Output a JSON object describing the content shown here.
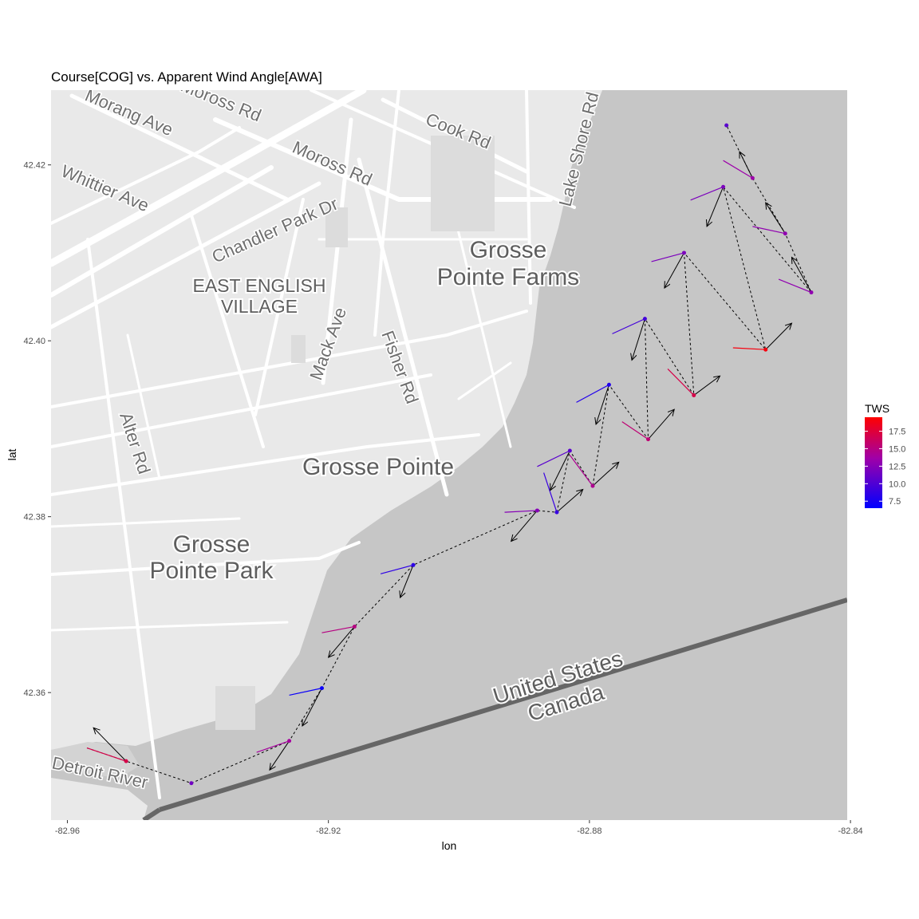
{
  "chart_data": {
    "type": "scatter",
    "title": "Course[COG] vs.  Apparent Wind Angle[AWA]",
    "xlabel": "lon",
    "ylabel": "lat",
    "xlim": [
      -82.9625,
      -82.8405
    ],
    "ylim": [
      42.3455,
      42.4285
    ],
    "x_ticks": [
      -82.96,
      -82.92,
      -82.88,
      -82.84
    ],
    "x_tick_labels": [
      "-82.96",
      "-82.92",
      "-82.88",
      "-82.84"
    ],
    "y_ticks": [
      42.36,
      42.38,
      42.4,
      42.42
    ],
    "y_tick_labels": [
      "42.36",
      "42.38",
      "42.40",
      "42.42"
    ],
    "legend": {
      "title": "TWS",
      "placement": "right",
      "min": 6.5,
      "max": 19.5,
      "breaks": [
        7.5,
        10.0,
        12.5,
        15.0,
        17.5
      ],
      "break_labels": [
        "7.5",
        "10.0",
        "12.5",
        "15.0",
        "17.5"
      ],
      "low_color": "#0000ff",
      "high_color": "#ff0000"
    },
    "track_style": "dashed",
    "grid": false,
    "points": [
      {
        "lon": -82.951,
        "lat": 42.3522,
        "tws": 17.0,
        "cog_to": [
          -82.956,
          42.356
        ],
        "awa_to": [
          -82.957,
          42.3537
        ]
      },
      {
        "lon": -82.941,
        "lat": 42.3497,
        "tws": 11.5
      },
      {
        "lon": -82.926,
        "lat": 42.3545,
        "tws": 14.0,
        "cog_to": [
          -82.929,
          42.3512
        ],
        "awa_to": [
          -82.931,
          42.3532
        ]
      },
      {
        "lon": -82.921,
        "lat": 42.3605,
        "tws": 7.0,
        "cog_to": [
          -82.924,
          42.3562
        ],
        "awa_to": [
          -82.926,
          42.3597
        ]
      },
      {
        "lon": -82.916,
        "lat": 42.3675,
        "tws": 15.0,
        "cog_to": [
          -82.92,
          42.364
        ],
        "awa_to": [
          -82.921,
          42.3668
        ]
      },
      {
        "lon": -82.907,
        "lat": 42.3745,
        "tws": 8.5,
        "cog_to": [
          -82.909,
          42.3708
        ],
        "awa_to": [
          -82.912,
          42.3735
        ]
      },
      {
        "lon": -82.888,
        "lat": 42.3807,
        "tws": 12.5,
        "cog_to": [
          -82.892,
          42.3772
        ],
        "awa_to": [
          -82.893,
          42.3805
        ]
      },
      {
        "lon": -82.885,
        "lat": 42.3805,
        "tws": 9.0,
        "cog_to": [
          -82.881,
          42.3831
        ],
        "awa_to": [
          -82.887,
          42.385
        ]
      },
      {
        "lon": -82.883,
        "lat": 42.3875,
        "tws": 10.5,
        "cog_to": [
          -82.886,
          42.383
        ],
        "awa_to": [
          -82.888,
          42.3857
        ]
      },
      {
        "lon": -82.8795,
        "lat": 42.3835,
        "tws": 14.5,
        "cog_to": [
          -82.8755,
          42.3862
        ],
        "awa_to": [
          -82.883,
          42.387
        ]
      },
      {
        "lon": -82.877,
        "lat": 42.395,
        "tws": 8.0,
        "cog_to": [
          -82.879,
          42.3905
        ],
        "awa_to": [
          -82.882,
          42.393
        ]
      },
      {
        "lon": -82.871,
        "lat": 42.3888,
        "tws": 15.5,
        "cog_to": [
          -82.867,
          42.3922
        ],
        "awa_to": [
          -82.875,
          42.3908
        ]
      },
      {
        "lon": -82.8715,
        "lat": 42.4025,
        "tws": 9.5,
        "cog_to": [
          -82.8735,
          42.3978
        ],
        "awa_to": [
          -82.8765,
          42.4008
        ]
      },
      {
        "lon": -82.864,
        "lat": 42.3938,
        "tws": 17.0,
        "cog_to": [
          -82.86,
          42.396
        ],
        "awa_to": [
          -82.868,
          42.3968
        ]
      },
      {
        "lon": -82.8655,
        "lat": 42.41,
        "tws": 12.0,
        "cog_to": [
          -82.8685,
          42.406
        ],
        "awa_to": [
          -82.8705,
          42.409
        ]
      },
      {
        "lon": -82.853,
        "lat": 42.399,
        "tws": 19.0,
        "cog_to": [
          -82.849,
          42.402
        ],
        "awa_to": [
          -82.858,
          42.3992
        ]
      },
      {
        "lon": -82.8595,
        "lat": 42.4175,
        "tws": 12.0,
        "cog_to": [
          -82.862,
          42.413
        ],
        "awa_to": [
          -82.8645,
          42.416
        ]
      },
      {
        "lon": -82.846,
        "lat": 42.4055,
        "tws": 13.0,
        "cog_to": [
          -82.849,
          42.4095
        ],
        "awa_to": [
          -82.851,
          42.407
        ]
      },
      {
        "lon": -82.85,
        "lat": 42.4122,
        "tws": 13.0,
        "cog_to": [
          -82.853,
          42.4157
        ],
        "awa_to": [
          -82.855,
          42.413
        ]
      },
      {
        "lon": -82.855,
        "lat": 42.4185,
        "tws": 13.5,
        "cog_to": [
          -82.857,
          42.4215
        ],
        "awa_to": [
          -82.8595,
          42.4205
        ]
      },
      {
        "lon": -82.859,
        "lat": 42.4245,
        "tws": 10.5
      }
    ]
  },
  "map": {
    "streets": [
      "Morang Ave",
      "Moross Rd",
      "Moross Rd",
      "Cook Rd",
      "Lake Shore Rd",
      "Whittier Ave",
      "Chandler Park Dr",
      "Mack Ave",
      "Fisher Rd",
      "Alter Rd",
      "Detroit River"
    ],
    "places": [
      "Grosse",
      "Pointe Farms",
      "EAST ENGLISH",
      "VILLAGE",
      "Grosse Pointe",
      "Grosse",
      "Pointe Park",
      "United States",
      "Canada"
    ],
    "colors": {
      "land": "#e8e8e8",
      "water": "#c6c6c6",
      "road": "#ffffff",
      "border": "#666666"
    }
  }
}
